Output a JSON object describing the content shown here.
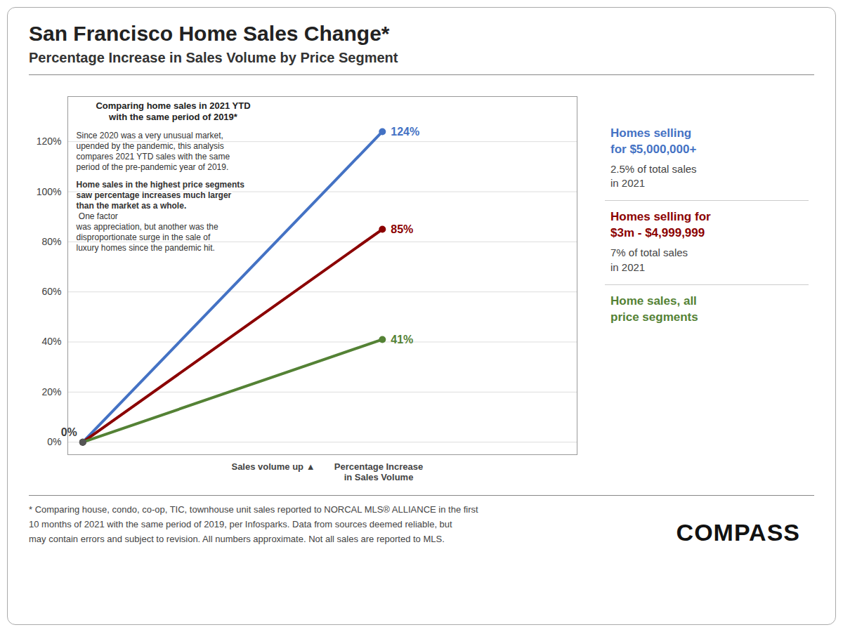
{
  "chart_data": {
    "type": "line",
    "title": "San Francisco Home Sales Change*",
    "subtitle": "Percentage Increase in Sales Volume by Price Segment",
    "x": [
      0,
      1
    ],
    "series": [
      {
        "name": "Homes selling\nfor $5,000,000+",
        "legend_note": "2.5% of total sales\nin 2021",
        "color": "#4472C4",
        "values": [
          0,
          1.24
        ],
        "value_labels": [
          null,
          "124%"
        ]
      },
      {
        "name": "Homes selling for\n$3m - $4,999,999",
        "legend_note": "7% of total sales\nin 2021",
        "color": "#8B0000",
        "values": [
          0,
          0.85
        ],
        "value_labels": [
          null,
          "85%"
        ]
      },
      {
        "name": "Home sales, all\nprice segments",
        "color": "#548235",
        "values": [
          0,
          0.41
        ],
        "value_labels": [
          null,
          "41%"
        ]
      }
    ],
    "start_label": "0%",
    "xlim": [
      -0.05,
      1.65
    ],
    "ylim": [
      -0.05,
      1.38
    ],
    "yticks": [
      {
        "value": 0,
        "label": "0%"
      },
      {
        "value": 0.2,
        "label": "20%"
      },
      {
        "value": 0.4,
        "label": "40%"
      },
      {
        "value": 0.6,
        "label": "60%"
      },
      {
        "value": 0.8,
        "label": "80%"
      },
      {
        "value": 1.0,
        "label": "100%"
      },
      {
        "value": 1.2,
        "label": "120%"
      }
    ],
    "tick_labels": "y",
    "grid": true,
    "legend": "right",
    "data_labels": true,
    "annotation_title": "Comparing home sales in 2021 YTD\nwith the same period of 2019*",
    "annotation_body": "Since 2020 was a very unusual market,\nupended by the pandemic, this analysis\ncompares 2021 YTD sales with the same\nperiod of the pre-pandemic year of 2019.",
    "annotation_body_bold": "Home sales in the highest price segments\nsaw percentage increases much larger\nthan the market as a whole.",
    "annotation_body_normal": " One factor\nwas appreciation, but another was the\ndisproportionate surge in the sale of\nluxury homes since the pandemic hit.",
    "x_annotations": [
      "Sales volume up ▲",
      "Percentage Increase\nin Sales Volume"
    ],
    "footnote": "* Comparing house, condo, co-op, TIC, townhouse unit sales reported to NORCAL MLS® ALLIANCE in the first\n10 months of 2021 with the same period of 2019, per Infosparks. Data from sources deemed reliable, but\nmay contain errors and subject to revision. All numbers approximate. Not all sales are reported to MLS.",
    "logo": "COMPASS"
  }
}
